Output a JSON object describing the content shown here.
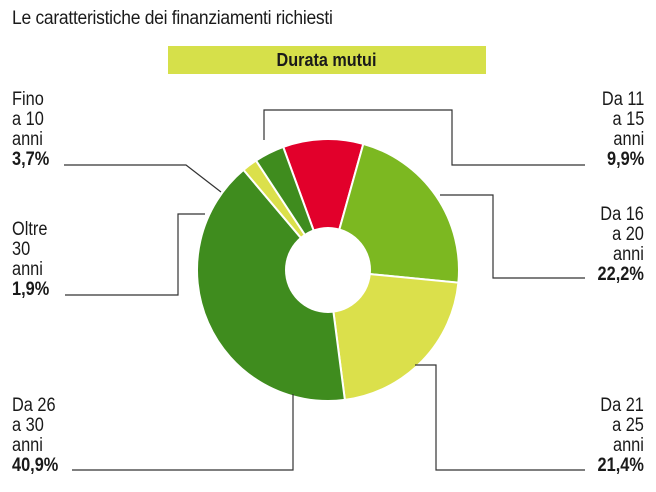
{
  "chart_data": {
    "type": "pie",
    "title": "Le caratteristiche dei finanziamenti richiesti",
    "subtitle": "Durata mutui",
    "slices": [
      {
        "label": "Da 11\na 15\nanni",
        "value": 9.9,
        "value_label": "9,9%",
        "color": "#e2002b"
      },
      {
        "label": "Da 16\na 20\nanni",
        "value": 22.2,
        "value_label": "22,2%",
        "color": "#7cb821"
      },
      {
        "label": "Da 21\na 25\nanni",
        "value": 21.4,
        "value_label": "21,4%",
        "color": "#dbe04b"
      },
      {
        "label": "Da 26\na 30\nanni",
        "value": 40.9,
        "value_label": "40,9%",
        "color": "#3f8c1e"
      },
      {
        "label": "Oltre\n30\nanni",
        "value": 1.9,
        "value_label": "1,9%",
        "color": "#dbe04b"
      },
      {
        "label": "Fino\na 10\nanni",
        "value": 3.7,
        "value_label": "3,7%",
        "color": "#3f8c1e"
      }
    ]
  }
}
